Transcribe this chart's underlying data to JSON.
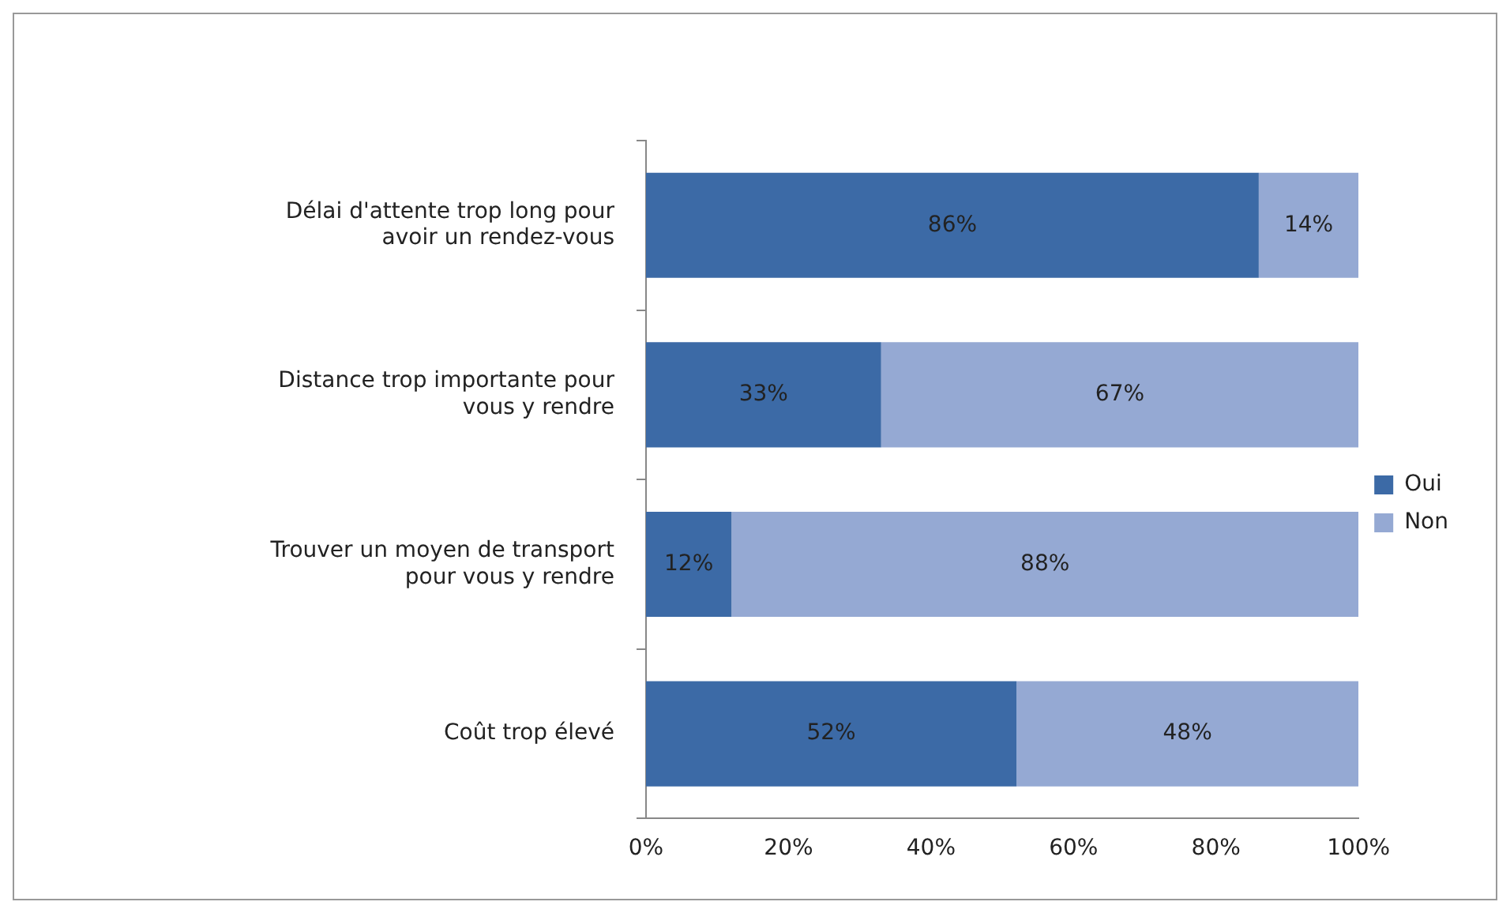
{
  "chart_data": {
    "type": "bar",
    "orientation": "horizontal",
    "stacked": true,
    "categories": [
      "Délai d'attente trop long pour avoir un rendez-vous",
      "Distance trop importante pour vous y rendre",
      "Trouver un moyen de transport pour vous y rendre",
      "Coût trop élevé"
    ],
    "series": [
      {
        "name": "Oui",
        "color": "#3c6aa6",
        "values": [
          86,
          33,
          12,
          52
        ],
        "value_labels": [
          "86%",
          "33%",
          "12%",
          "52%"
        ]
      },
      {
        "name": "Non",
        "color": "#95a9d3",
        "values": [
          14,
          67,
          88,
          48
        ],
        "value_labels": [
          "14%",
          "67%",
          "88%",
          "48%"
        ]
      }
    ],
    "xlim": [
      0,
      100
    ],
    "xticks": [
      {
        "value": 0,
        "label": "0%"
      },
      {
        "value": 20,
        "label": "20%"
      },
      {
        "value": 40,
        "label": "40%"
      },
      {
        "value": 60,
        "label": "60%"
      },
      {
        "value": 80,
        "label": "80%"
      },
      {
        "value": 100,
        "label": "100%"
      }
    ],
    "grid": false,
    "legend": "right"
  }
}
